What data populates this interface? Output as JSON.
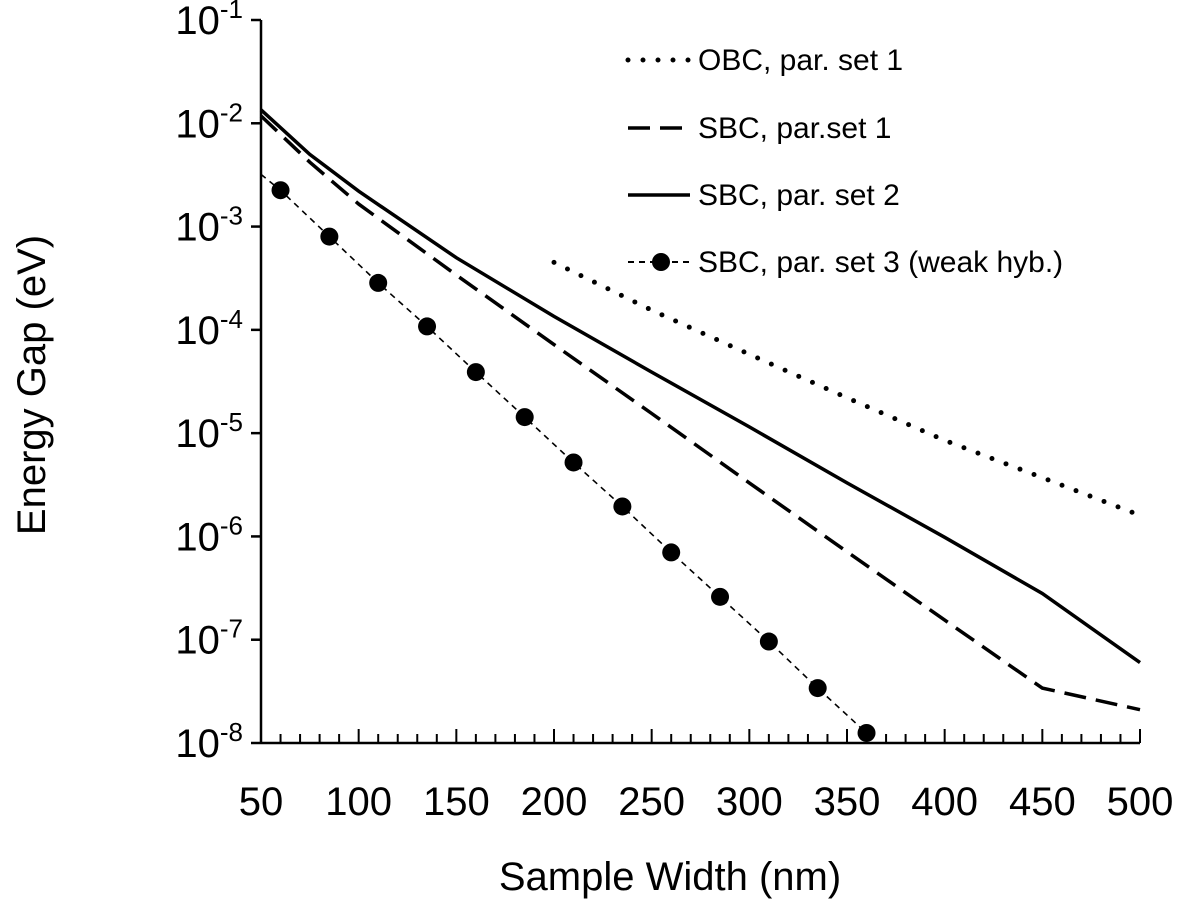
{
  "chart_data": {
    "type": "line",
    "xlabel": "Sample Width (nm)",
    "ylabel": "Energy Gap (eV)",
    "xlim": [
      50,
      500
    ],
    "ylim": [
      1e-08,
      0.1
    ],
    "yscale": "log",
    "x_ticks": [
      "50",
      "100",
      "150",
      "200",
      "250",
      "300",
      "350",
      "400",
      "450",
      "500"
    ],
    "y_ticks": [
      {
        "base": "10",
        "exp": "-1"
      },
      {
        "base": "10",
        "exp": "-2"
      },
      {
        "base": "10",
        "exp": "-3"
      },
      {
        "base": "10",
        "exp": "-4"
      },
      {
        "base": "10",
        "exp": "-5"
      },
      {
        "base": "10",
        "exp": "-6"
      },
      {
        "base": "10",
        "exp": "-7"
      },
      {
        "base": "10",
        "exp": "-8"
      }
    ],
    "grid": false,
    "legend_position": "top-right",
    "series": [
      {
        "name": "OBC, par. set 1",
        "style": "dotted",
        "color": "#000000",
        "x": [
          200,
          250,
          300,
          350,
          400,
          450,
          500
        ],
        "y": [
          0.00045,
          0.000155,
          5.8e-05,
          2.2e-05,
          8.5e-06,
          3.7e-06,
          1.6e-06
        ]
      },
      {
        "name": "SBC, par.set 1",
        "style": "dashed",
        "color": "#000000",
        "x": [
          50,
          75,
          100,
          150,
          200,
          250,
          300,
          350,
          400,
          450,
          500
        ],
        "y": [
          0.0118,
          0.0042,
          0.00165,
          0.00034,
          7.2e-05,
          1.55e-05,
          3.3e-06,
          7.1e-07,
          1.55e-07,
          3.4e-08,
          2.1e-08
        ]
      },
      {
        "name": "SBC, par. set 2",
        "style": "solid",
        "color": "#000000",
        "x": [
          50,
          75,
          100,
          150,
          200,
          250,
          300,
          350,
          400,
          450,
          500
        ],
        "y": [
          0.0135,
          0.005,
          0.0022,
          0.0005,
          0.000135,
          3.9e-05,
          1.15e-05,
          3.3e-06,
          9.8e-07,
          2.8e-07,
          6e-08
        ]
      },
      {
        "name": "SBC, par. set 3 (weak hyb.)",
        "style": "dashed-markers",
        "color": "#000000",
        "x": [
          50,
          60,
          85,
          110,
          135,
          160,
          185,
          210,
          235,
          260,
          285,
          310,
          335,
          360
        ],
        "y": [
          0.0032,
          0.00225,
          0.0008,
          0.000285,
          0.000108,
          3.9e-05,
          1.43e-05,
          5.2e-06,
          1.95e-06,
          7e-07,
          2.6e-07,
          9.6e-08,
          3.4e-08,
          1.25e-08
        ],
        "markers": [
          false,
          true,
          true,
          true,
          true,
          true,
          true,
          true,
          true,
          true,
          true,
          true,
          true,
          true
        ]
      }
    ]
  }
}
